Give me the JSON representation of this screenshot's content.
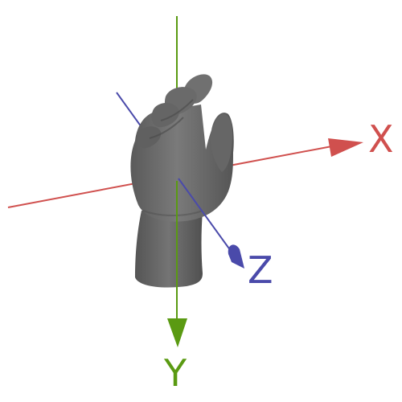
{
  "axes": {
    "x": {
      "label": "X",
      "color": "#d0504e"
    },
    "y": {
      "label": "Y",
      "color": "#5a9a12"
    },
    "z": {
      "label": "Z",
      "color": "#4a4aaa"
    }
  },
  "model": {
    "color": "#6e6e6e",
    "shade": "#4d4d4d",
    "highlight": "#8a8a8a"
  }
}
